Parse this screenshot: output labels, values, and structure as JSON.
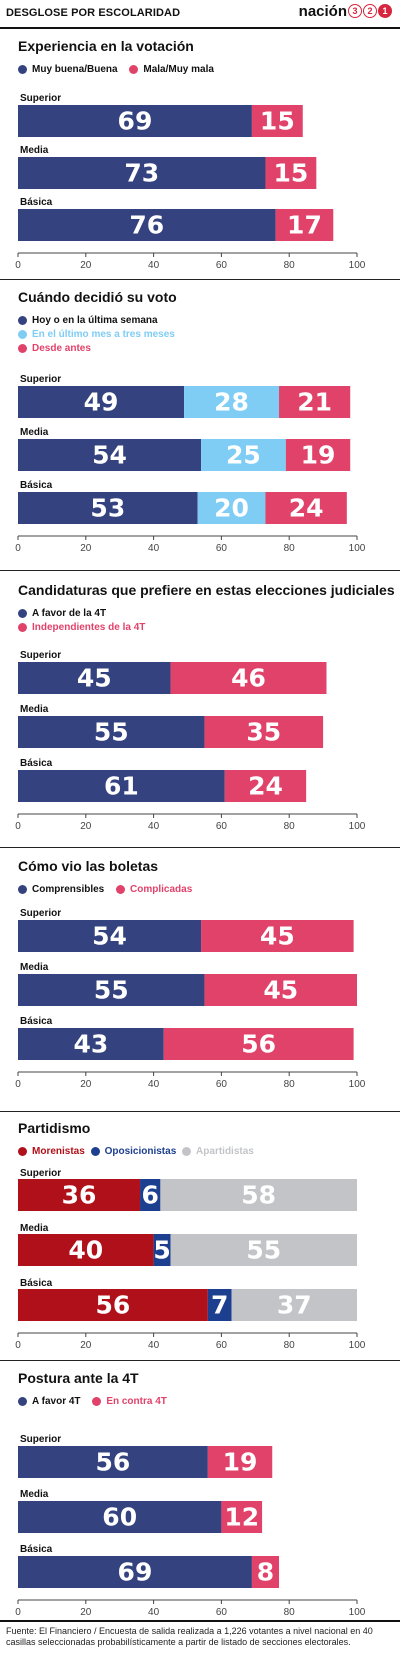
{
  "header": {
    "title": "DESGLOSE POR ESCOLARIDAD",
    "brand_text": "nación",
    "brand_digits": [
      "3",
      "2",
      "1"
    ]
  },
  "colors": {
    "navy": "#34437f",
    "pink": "#e1426a",
    "lightblue": "#7fcdf5",
    "darkred": "#b0101a",
    "blue": "#1d3f8f",
    "gray": "#c2c4c7",
    "axis": "#444444",
    "text": "#111111"
  },
  "chart_data": [
    {
      "id": "experiencia",
      "type": "bar",
      "orientation": "horizontal",
      "stacked": true,
      "title": "Experiencia en la votación",
      "categories": [
        "Superior",
        "Media",
        "Básica"
      ],
      "series": [
        {
          "name": "Muy buena/Buena",
          "color": "#34437f",
          "values": [
            69,
            73,
            76
          ]
        },
        {
          "name": "Mala/Muy mala",
          "color": "#e1426a",
          "values": [
            15,
            15,
            17
          ]
        }
      ],
      "xlim": [
        0,
        100
      ],
      "xticks": [
        0,
        20,
        40,
        60,
        80,
        100
      ],
      "legend_placement": "top-left, inline",
      "grid": false
    },
    {
      "id": "cuando",
      "type": "bar",
      "orientation": "horizontal",
      "stacked": true,
      "title": "Cuándo decidió su voto",
      "categories": [
        "Superior",
        "Media",
        "Básica"
      ],
      "series": [
        {
          "name": "Hoy o en la última semana",
          "color": "#34437f",
          "values": [
            49,
            54,
            53
          ]
        },
        {
          "name": "En el último mes a tres meses",
          "color": "#7fcdf5",
          "values": [
            28,
            25,
            20
          ]
        },
        {
          "name": "Desde antes",
          "color": "#e1426a",
          "values": [
            21,
            19,
            24
          ]
        }
      ],
      "xlim": [
        0,
        100
      ],
      "xticks": [
        0,
        20,
        40,
        60,
        80,
        100
      ],
      "legend_placement": "top-left, stacked",
      "grid": false
    },
    {
      "id": "candidaturas",
      "type": "bar",
      "orientation": "horizontal",
      "stacked": true,
      "title": "Candidaturas que prefiere en estas elecciones judiciales",
      "categories": [
        "Superior",
        "Media",
        "Básica"
      ],
      "series": [
        {
          "name": "A favor de la 4T",
          "color": "#34437f",
          "values": [
            45,
            55,
            61
          ]
        },
        {
          "name": "Independientes de la 4T",
          "color": "#e1426a",
          "values": [
            46,
            35,
            24
          ]
        }
      ],
      "xlim": [
        0,
        100
      ],
      "xticks": [
        0,
        20,
        40,
        60,
        80,
        100
      ],
      "legend_placement": "top-left, stacked",
      "grid": false
    },
    {
      "id": "boletas",
      "type": "bar",
      "orientation": "horizontal",
      "stacked": true,
      "title": "Cómo vio las boletas",
      "categories": [
        "Superior",
        "Media",
        "Básica"
      ],
      "series": [
        {
          "name": "Comprensibles",
          "color": "#34437f",
          "values": [
            54,
            55,
            43
          ]
        },
        {
          "name": "Complicadas",
          "color": "#e1426a",
          "values": [
            45,
            45,
            56
          ]
        }
      ],
      "xlim": [
        0,
        100
      ],
      "xticks": [
        0,
        20,
        40,
        60,
        80,
        100
      ],
      "legend_placement": "top-left, inline",
      "grid": false
    },
    {
      "id": "partidismo",
      "type": "bar",
      "orientation": "horizontal",
      "stacked": true,
      "title": "Partidismo",
      "categories": [
        "Superior",
        "Media",
        "Básica"
      ],
      "series": [
        {
          "name": "Morenistas",
          "color": "#b0101a",
          "values": [
            36,
            40,
            56
          ]
        },
        {
          "name": "Oposicionistas",
          "color": "#1d3f8f",
          "values": [
            6,
            5,
            7
          ]
        },
        {
          "name": "Apartidistas",
          "color": "#c2c4c7",
          "values": [
            58,
            55,
            37
          ]
        }
      ],
      "xlim": [
        0,
        100
      ],
      "xticks": [
        0,
        20,
        40,
        60,
        80,
        100
      ],
      "legend_placement": "top-left, inline",
      "grid": false
    },
    {
      "id": "postura",
      "type": "bar",
      "orientation": "horizontal",
      "stacked": true,
      "title": "Postura ante la 4T",
      "categories": [
        "Superior",
        "Media",
        "Básica"
      ],
      "series": [
        {
          "name": "A favor 4T",
          "color": "#34437f",
          "values": [
            56,
            60,
            69
          ]
        },
        {
          "name": "En contra 4T",
          "color": "#e1426a",
          "values": [
            19,
            12,
            8
          ]
        }
      ],
      "xlim": [
        0,
        100
      ],
      "xticks": [
        0,
        20,
        40,
        60,
        80,
        100
      ],
      "legend_placement": "top-left, inline",
      "grid": false
    }
  ],
  "footer": {
    "source": "Fuente: El Financiero / Encuesta de salida realizada a 1,226 votantes a nivel nacional en 40 casillas seleccionadas probabilísticamente a partir de listado de secciones electorales."
  }
}
